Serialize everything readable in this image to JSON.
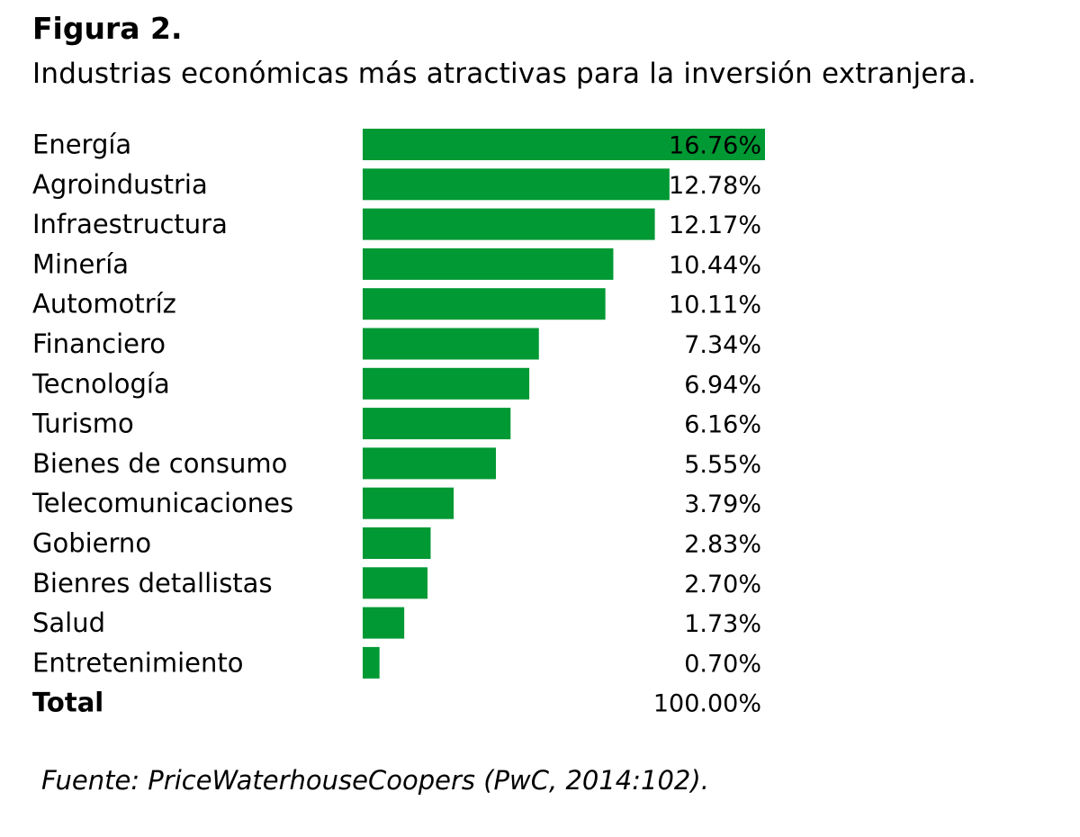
{
  "figure_label": "Figura 2.",
  "title": "Industrias económicas más atractivas para la inversión extranjera.",
  "source": "Fuente: PriceWaterhouseCoopers (PwC, 2014:102).",
  "colors": {
    "bar": "#009933"
  },
  "chart_data": {
    "type": "bar",
    "orientation": "horizontal",
    "categories": [
      "Energía",
      "Agroindustria",
      "Infraestructura",
      "Minería",
      "Automotríz",
      "Financiero",
      "Tecnología",
      "Turismo",
      "Bienes de consumo",
      "Telecomunicaciones",
      "Gobierno",
      "Bienres detallistas",
      "Salud",
      "Entretenimiento"
    ],
    "values": [
      16.76,
      12.78,
      12.17,
      10.44,
      10.11,
      7.34,
      6.94,
      6.16,
      5.55,
      3.79,
      2.83,
      2.7,
      1.73,
      0.7
    ],
    "value_labels": [
      "16.76%",
      "12.78%",
      "12.17%",
      "10.44%",
      "10.11%",
      "7.34%",
      "6.94%",
      "6.16%",
      "5.55%",
      "3.79%",
      "2.83%",
      "2.70%",
      "1.73%",
      "0.70%"
    ],
    "total": {
      "label": "Total",
      "value_label": "100.00%"
    },
    "xlim": [
      0,
      16.76
    ],
    "grid": false,
    "legend": "none"
  }
}
